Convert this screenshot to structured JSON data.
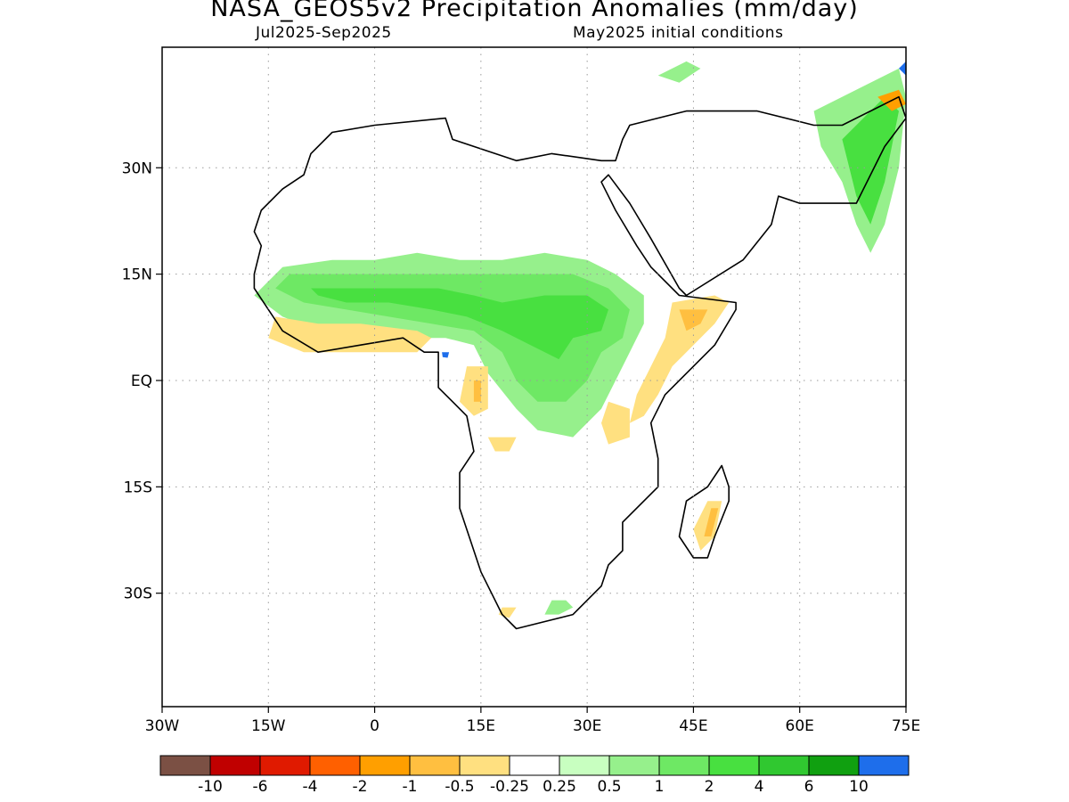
{
  "title": "NASA_GEOS5v2 Precipitation Anomalies (mm/day)",
  "subtitle_left": "Jul2025-Sep2025",
  "subtitle_right": "May2025 initial conditions",
  "map": {
    "projection": "equirectangular",
    "lon_range": [
      -30,
      75
    ],
    "lat_range": [
      -46,
      47
    ],
    "grid": "dotted",
    "x_ticks": [
      {
        "lon": -30,
        "label": "30W"
      },
      {
        "lon": -15,
        "label": "15W"
      },
      {
        "lon": 0,
        "label": "0"
      },
      {
        "lon": 15,
        "label": "15E"
      },
      {
        "lon": 30,
        "label": "30E"
      },
      {
        "lon": 45,
        "label": "45E"
      },
      {
        "lon": 60,
        "label": "60E"
      },
      {
        "lon": 75,
        "label": "75E"
      }
    ],
    "y_ticks": [
      {
        "lat": 30,
        "label": "30N"
      },
      {
        "lat": 15,
        "label": "15N"
      },
      {
        "lat": 0,
        "label": "EQ"
      },
      {
        "lat": -15,
        "label": "15S"
      },
      {
        "lat": -30,
        "label": "30S"
      }
    ]
  },
  "legend": {
    "colors": [
      "#7b5044",
      "#c00000",
      "#e01a00",
      "#ff6000",
      "#ff9f00",
      "#ffbf40",
      "#ffe080",
      "#ffffff",
      "#c8ffc0",
      "#96f08c",
      "#6ee864",
      "#48e040",
      "#30c830",
      "#10a010",
      "#1e6eeb"
    ],
    "labels": [
      "-10",
      "-6",
      "-4",
      "-2",
      "-1",
      "-0.5",
      "-0.25",
      "0.25",
      "0.5",
      "1",
      "2",
      "4",
      "6",
      "10"
    ]
  },
  "anomaly_regions": [
    {
      "level": "0.5",
      "color": "#96f08c",
      "points": [
        [
          -13,
          16
        ],
        [
          -6,
          17
        ],
        [
          0,
          17
        ],
        [
          6,
          18
        ],
        [
          12,
          17
        ],
        [
          18,
          17
        ],
        [
          24,
          18
        ],
        [
          30,
          17
        ],
        [
          34,
          15
        ],
        [
          38,
          12
        ],
        [
          38,
          8
        ],
        [
          36,
          4
        ],
        [
          34,
          0
        ],
        [
          32,
          -4
        ],
        [
          28,
          -8
        ],
        [
          23,
          -7
        ],
        [
          20,
          -4
        ],
        [
          16,
          1
        ],
        [
          14,
          5
        ],
        [
          10,
          6
        ],
        [
          4,
          6
        ],
        [
          -2,
          6
        ],
        [
          -8,
          7
        ],
        [
          -13,
          9
        ],
        [
          -17,
          12
        ]
      ]
    },
    {
      "level": "1",
      "color": "#6ee864",
      "points": [
        [
          -12,
          15
        ],
        [
          -4,
          15
        ],
        [
          4,
          15
        ],
        [
          10,
          15
        ],
        [
          16,
          15
        ],
        [
          22,
          15
        ],
        [
          28,
          15
        ],
        [
          33,
          13
        ],
        [
          36,
          10
        ],
        [
          35,
          6
        ],
        [
          32,
          4
        ],
        [
          30,
          0
        ],
        [
          27,
          -3
        ],
        [
          23,
          -3
        ],
        [
          20,
          0
        ],
        [
          18,
          4
        ],
        [
          14,
          7
        ],
        [
          8,
          8
        ],
        [
          2,
          9
        ],
        [
          -4,
          10
        ],
        [
          -10,
          11
        ],
        [
          -14,
          13
        ]
      ]
    },
    {
      "level": "2",
      "color": "#48e040",
      "points": [
        [
          -9,
          13
        ],
        [
          -3,
          13
        ],
        [
          3,
          13
        ],
        [
          9,
          13
        ],
        [
          14,
          12
        ],
        [
          18,
          11
        ],
        [
          24,
          12
        ],
        [
          30,
          12
        ],
        [
          33,
          10
        ],
        [
          32,
          7
        ],
        [
          28,
          6
        ],
        [
          26,
          3
        ],
        [
          22,
          5
        ],
        [
          18,
          7
        ],
        [
          13,
          9
        ],
        [
          8,
          10
        ],
        [
          2,
          11
        ],
        [
          -4,
          11
        ],
        [
          -8,
          12
        ]
      ]
    },
    {
      "level": "0.5",
      "color": "#96f08c",
      "points": [
        [
          62,
          38
        ],
        [
          70,
          42
        ],
        [
          74,
          44
        ],
        [
          75,
          40
        ],
        [
          74,
          30
        ],
        [
          72,
          22
        ],
        [
          70,
          18
        ],
        [
          68,
          22
        ],
        [
          66,
          28
        ],
        [
          63,
          33
        ]
      ]
    },
    {
      "level": "2",
      "color": "#48e040",
      "points": [
        [
          66,
          34
        ],
        [
          72,
          40
        ],
        [
          74,
          38
        ],
        [
          72,
          28
        ],
        [
          70,
          22
        ],
        [
          68,
          26
        ],
        [
          67,
          30
        ]
      ]
    },
    {
      "level": "0.5",
      "color": "#96f08c",
      "points": [
        [
          40,
          43
        ],
        [
          44,
          45
        ],
        [
          46,
          44
        ],
        [
          43,
          42
        ]
      ]
    },
    {
      "level": "0.5",
      "color": "#96f08c",
      "points": [
        [
          25,
          -31
        ],
        [
          27,
          -31
        ],
        [
          28,
          -32
        ],
        [
          26,
          -33
        ],
        [
          24,
          -33
        ]
      ]
    },
    {
      "level": "-0.5",
      "color": "#ffbf40",
      "points": [
        [
          -13,
          8
        ],
        [
          -9,
          7
        ],
        [
          -4,
          6
        ],
        [
          1,
          6
        ],
        [
          4,
          6
        ],
        [
          4,
          5
        ],
        [
          0,
          5
        ],
        [
          -5,
          5
        ],
        [
          -9,
          5
        ],
        [
          -12,
          6
        ]
      ]
    },
    {
      "level": "-0.25",
      "color": "#ffe080",
      "points": [
        [
          -14,
          9
        ],
        [
          -8,
          8
        ],
        [
          -2,
          8
        ],
        [
          6,
          7
        ],
        [
          8,
          6
        ],
        [
          6,
          4
        ],
        [
          -2,
          4
        ],
        [
          -10,
          4
        ],
        [
          -15,
          6
        ]
      ]
    },
    {
      "level": "-0.25",
      "color": "#ffe080",
      "points": [
        [
          42,
          11
        ],
        [
          48,
          12
        ],
        [
          50,
          11
        ],
        [
          48,
          8
        ],
        [
          44,
          4
        ],
        [
          42,
          2
        ],
        [
          40,
          -2
        ],
        [
          38,
          -5
        ],
        [
          36,
          -6
        ],
        [
          37,
          -2
        ],
        [
          39,
          2
        ],
        [
          41,
          6
        ]
      ]
    },
    {
      "level": "-0.5",
      "color": "#ffbf40",
      "points": [
        [
          43,
          10
        ],
        [
          47,
          10
        ],
        [
          46,
          8
        ],
        [
          44,
          7
        ]
      ]
    },
    {
      "level": "-0.25",
      "color": "#ffe080",
      "points": [
        [
          13,
          2
        ],
        [
          16,
          2
        ],
        [
          16,
          -4
        ],
        [
          14,
          -5
        ],
        [
          12,
          -3
        ]
      ]
    },
    {
      "level": "-0.5",
      "color": "#ffbf40",
      "points": [
        [
          14,
          0
        ],
        [
          15,
          0
        ],
        [
          15,
          -3
        ],
        [
          14,
          -3
        ]
      ]
    },
    {
      "level": "-0.25",
      "color": "#ffe080",
      "points": [
        [
          16,
          -8
        ],
        [
          20,
          -8
        ],
        [
          19,
          -10
        ],
        [
          17,
          -10
        ]
      ]
    },
    {
      "level": "-0.25",
      "color": "#ffe080",
      "points": [
        [
          33,
          -3
        ],
        [
          36,
          -4
        ],
        [
          36,
          -8
        ],
        [
          33,
          -9
        ],
        [
          32,
          -6
        ]
      ]
    },
    {
      "level": "-0.25",
      "color": "#ffe080",
      "points": [
        [
          47,
          -17
        ],
        [
          49,
          -17
        ],
        [
          48,
          -22
        ],
        [
          46,
          -24
        ],
        [
          45,
          -21
        ]
      ]
    },
    {
      "level": "-0.5",
      "color": "#ffbf40",
      "points": [
        [
          47.5,
          -18
        ],
        [
          48.5,
          -18
        ],
        [
          47.5,
          -22
        ],
        [
          46.5,
          -22
        ]
      ]
    },
    {
      "level": "-0.25",
      "color": "#ffe080",
      "points": [
        [
          18,
          -32
        ],
        [
          20,
          -32
        ],
        [
          19,
          -33.5
        ],
        [
          17.5,
          -33
        ]
      ]
    },
    {
      "level": "-1",
      "color": "#ff9f00",
      "points": [
        [
          71,
          40
        ],
        [
          74,
          41
        ],
        [
          75,
          39
        ],
        [
          73,
          38
        ]
      ]
    },
    {
      "level": "10",
      "color": "#1e6eeb",
      "points": [
        [
          74,
          44
        ],
        [
          75,
          45
        ],
        [
          75,
          43
        ]
      ]
    },
    {
      "level": "10",
      "color": "#1e6eeb",
      "points": [
        [
          9.5,
          4
        ],
        [
          10.5,
          4
        ],
        [
          10.3,
          3.2
        ],
        [
          9.6,
          3.3
        ]
      ]
    }
  ],
  "land_outline": [
    [
      -17,
      21
    ],
    [
      -16,
      24
    ],
    [
      -13,
      27
    ],
    [
      -10,
      29
    ],
    [
      -9,
      32
    ],
    [
      -6,
      35
    ],
    [
      0,
      36
    ],
    [
      10,
      37
    ],
    [
      11,
      34
    ],
    [
      20,
      31
    ],
    [
      25,
      32
    ],
    [
      32,
      31
    ],
    [
      34,
      31
    ],
    [
      35,
      34
    ],
    [
      36,
      36
    ],
    [
      44,
      38
    ],
    [
      54,
      38
    ],
    [
      62,
      36
    ],
    [
      66,
      36
    ],
    [
      70,
      38
    ],
    [
      74,
      40
    ],
    [
      75,
      37
    ],
    [
      72,
      33
    ],
    [
      68,
      25
    ],
    [
      66,
      25
    ],
    [
      60,
      25
    ],
    [
      57,
      26
    ],
    [
      56,
      22
    ],
    [
      52,
      17
    ],
    [
      44,
      12
    ],
    [
      43,
      13
    ],
    [
      39,
      20
    ],
    [
      36,
      25
    ],
    [
      33,
      29
    ],
    [
      32,
      28
    ],
    [
      34,
      24
    ],
    [
      37,
      19
    ],
    [
      39,
      16
    ],
    [
      43,
      12
    ],
    [
      51,
      11
    ],
    [
      51,
      10
    ],
    [
      48,
      5
    ],
    [
      41,
      -2
    ],
    [
      39,
      -6
    ],
    [
      40,
      -11
    ],
    [
      40,
      -15
    ],
    [
      35,
      -20
    ],
    [
      35,
      -24
    ],
    [
      33,
      -26
    ],
    [
      32,
      -29
    ],
    [
      28,
      -33
    ],
    [
      20,
      -35
    ],
    [
      18,
      -33
    ],
    [
      15,
      -27
    ],
    [
      12,
      -18
    ],
    [
      12,
      -13
    ],
    [
      14,
      -10
    ],
    [
      13,
      -5
    ],
    [
      9,
      -1
    ],
    [
      9,
      4
    ],
    [
      7,
      4
    ],
    [
      4,
      6
    ],
    [
      -2,
      5
    ],
    [
      -8,
      4
    ],
    [
      -13,
      7
    ],
    [
      -15,
      10
    ],
    [
      -17,
      13
    ],
    [
      -17,
      15
    ],
    [
      -16,
      19
    ]
  ],
  "madagascar_outline": [
    [
      49,
      -12
    ],
    [
      50,
      -15
    ],
    [
      50,
      -17
    ],
    [
      48,
      -22
    ],
    [
      47,
      -25
    ],
    [
      45,
      -25
    ],
    [
      43,
      -22
    ],
    [
      44,
      -17
    ],
    [
      47,
      -15
    ]
  ]
}
